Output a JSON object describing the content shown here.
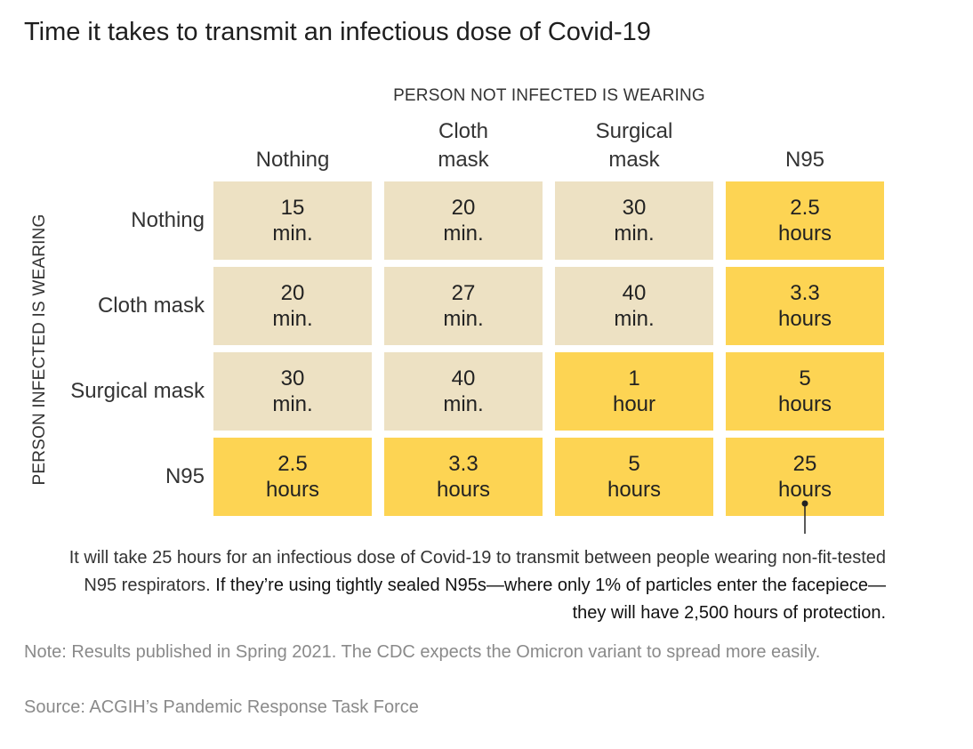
{
  "chart_data": {
    "type": "table",
    "title": "Time it takes to transmit an infectious dose of Covid-19",
    "column_axis_label": "PERSON NOT INFECTED IS WEARING",
    "row_axis_label": "PERSON INFECTED IS WEARING",
    "columns": [
      "Nothing",
      "Cloth\nmask",
      "Surgical\nmask",
      "N95"
    ],
    "rows": [
      "Nothing",
      "Cloth mask",
      "Surgical mask",
      "N95"
    ],
    "cells": [
      [
        {
          "value": "15",
          "unit": "min."
        },
        {
          "value": "20",
          "unit": "min."
        },
        {
          "value": "30",
          "unit": "min."
        },
        {
          "value": "2.5",
          "unit": "hours"
        }
      ],
      [
        {
          "value": "20",
          "unit": "min."
        },
        {
          "value": "27",
          "unit": "min."
        },
        {
          "value": "40",
          "unit": "min."
        },
        {
          "value": "3.3",
          "unit": "hours"
        }
      ],
      [
        {
          "value": "30",
          "unit": "min."
        },
        {
          "value": "40",
          "unit": "min."
        },
        {
          "value": "1",
          "unit": "hour"
        },
        {
          "value": "5",
          "unit": "hours"
        }
      ],
      [
        {
          "value": "2.5",
          "unit": "hours"
        },
        {
          "value": "3.3",
          "unit": "hours"
        },
        {
          "value": "5",
          "unit": "hours"
        },
        {
          "value": "25",
          "unit": "hours"
        }
      ]
    ],
    "colors": {
      "minutes": "#ede1c3",
      "hours": "#fdd453"
    },
    "annotation": {
      "cell": "N95 / N95",
      "plain": "It will take 25 hours for an infectious dose of Covid-19 to transmit between people wearing non-fit-tested N95 respirators. ",
      "emphasis": "If they’re using tightly sealed N95s—where only 1% of particles enter the facepiece—they will have 2,500 hours of protection."
    },
    "note": "Note: Results published in Spring 2021. The CDC expects the Omicron variant to spread more easily.",
    "source": "Source: ACGIH’s Pandemic Response Task Force"
  }
}
